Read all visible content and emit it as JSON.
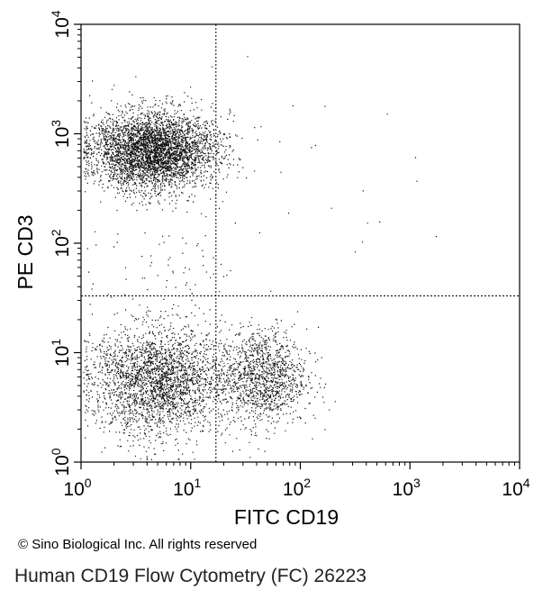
{
  "chart_data": {
    "type": "scatter",
    "xlabel": "FITC CD19",
    "ylabel": "PE CD3",
    "x_scale": "log",
    "y_scale": "log",
    "xlim": [
      1,
      10000
    ],
    "ylim": [
      1,
      10000
    ],
    "x_ticks": [
      {
        "value": 1,
        "base": "10",
        "exp": "0"
      },
      {
        "value": 10,
        "base": "10",
        "exp": "1"
      },
      {
        "value": 100,
        "base": "10",
        "exp": "2"
      },
      {
        "value": 1000,
        "base": "10",
        "exp": "3"
      },
      {
        "value": 10000,
        "base": "10",
        "exp": "4"
      }
    ],
    "y_ticks": [
      {
        "value": 1,
        "base": "10",
        "exp": "0"
      },
      {
        "value": 10,
        "base": "10",
        "exp": "1"
      },
      {
        "value": 100,
        "base": "10",
        "exp": "2"
      },
      {
        "value": 1000,
        "base": "10",
        "exp": "3"
      },
      {
        "value": 10000,
        "base": "10",
        "exp": "4"
      }
    ],
    "quadrant_gates": {
      "x": 17,
      "y": 33
    },
    "populations": [
      {
        "center": [
          4.5,
          700
        ],
        "spread": [
          0.28,
          0.18
        ],
        "count": 5200
      },
      {
        "center": [
          5.0,
          5.5
        ],
        "spread": [
          0.3,
          0.25
        ],
        "count": 3800
      },
      {
        "center": [
          45,
          6.0
        ],
        "spread": [
          0.2,
          0.22
        ],
        "count": 1300
      },
      {
        "center": [
          60,
          400
        ],
        "spread": [
          0.6,
          0.45
        ],
        "count": 25
      },
      {
        "center": [
          6,
          60
        ],
        "spread": [
          0.35,
          0.2
        ],
        "count": 60
      }
    ],
    "grid": false,
    "legend": "none"
  },
  "footer": {
    "copyright": "© Sino Biological Inc. All rights reserved",
    "caption": "Human CD19 Flow Cytometry (FC) 26223"
  }
}
